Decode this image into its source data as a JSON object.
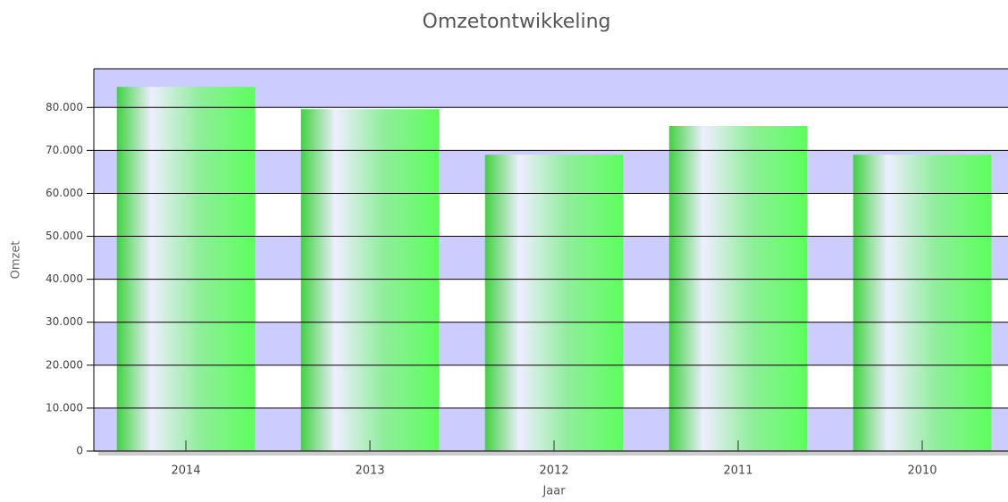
{
  "chart_data": {
    "type": "bar",
    "title": "Omzetontwikkeling",
    "x_label": "Jaar",
    "y_label": "Omzet",
    "categories": [
      "2014",
      "2013",
      "2012",
      "2011",
      "2010"
    ],
    "values": [
      84800,
      79600,
      69000,
      75700,
      69000
    ],
    "color": "#5cf55c",
    "ylim": [
      0,
      89000
    ],
    "yticks": [
      0,
      {
        "value": 10000,
        "label": "10.000"
      },
      {
        "value": 20000,
        "label": "20.000"
      },
      {
        "value": 30000,
        "label": "30.000"
      },
      {
        "value": 40000,
        "label": "40.000"
      },
      {
        "value": 50000,
        "label": "50.000"
      },
      {
        "value": 60000,
        "label": "60.000"
      },
      {
        "value": 70000,
        "label": "70.000"
      },
      {
        "value": 80000,
        "label": "80.000"
      }
    ],
    "grid": true
  }
}
